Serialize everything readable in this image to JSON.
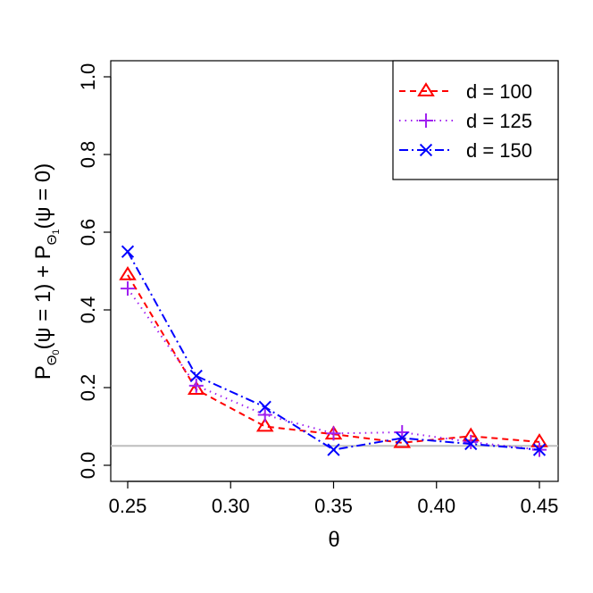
{
  "chart_data": {
    "type": "line",
    "x": [
      0.25,
      0.2833,
      0.3167,
      0.35,
      0.3833,
      0.4167,
      0.45
    ],
    "xlim": [
      0.25,
      0.45
    ],
    "ylim": [
      0.0,
      1.0
    ],
    "xticks": [
      "0.25",
      "0.30",
      "0.35",
      "0.40",
      "0.45"
    ],
    "yticks": [
      "0.0",
      "0.2",
      "0.4",
      "0.6",
      "0.8",
      "1.0"
    ],
    "xlabel": "θ",
    "ylabel_parts": {
      "p": "P",
      "sub0": "Θ",
      "sub0_index": "0",
      "mid": "(ψ = 1) + ",
      "sub1": "Θ",
      "sub1_index": "1",
      "end": "(ψ = 0)"
    },
    "reference_line": {
      "y": 0.05,
      "color": "#bebebe"
    },
    "legend_position": "top-right",
    "series": [
      {
        "name": "d = 100",
        "color": "#ff0000",
        "marker": "triangle",
        "dash": "7,5",
        "values": [
          0.49,
          0.195,
          0.1,
          0.08,
          0.058,
          0.075,
          0.06
        ]
      },
      {
        "name": "d = 125",
        "color": "#a020f0",
        "marker": "plus",
        "dash": "1.5,5",
        "values": [
          0.455,
          0.205,
          0.13,
          0.082,
          0.085,
          0.06,
          0.04
        ]
      },
      {
        "name": "d = 150",
        "color": "#0000ff",
        "marker": "cross",
        "dash": "10,4,2,4",
        "values": [
          0.55,
          0.23,
          0.15,
          0.04,
          0.07,
          0.055,
          0.04
        ]
      }
    ]
  }
}
